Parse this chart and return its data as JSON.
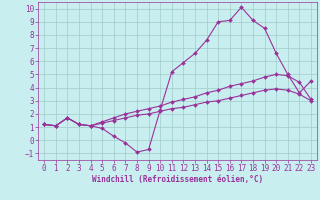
{
  "xlabel": "Windchill (Refroidissement éolien,°C)",
  "xlim": [
    -0.5,
    23.5
  ],
  "ylim": [
    -1.5,
    10.5
  ],
  "xticks": [
    0,
    1,
    2,
    3,
    4,
    5,
    6,
    7,
    8,
    9,
    10,
    11,
    12,
    13,
    14,
    15,
    16,
    17,
    18,
    19,
    20,
    21,
    22,
    23
  ],
  "yticks": [
    -1,
    0,
    1,
    2,
    3,
    4,
    5,
    6,
    7,
    8,
    9,
    10
  ],
  "bg_color": "#c8eef0",
  "grid_color": "#a0ccc8",
  "line_color": "#993399",
  "line1_x": [
    0,
    1,
    2,
    3,
    4,
    5,
    6,
    7,
    8,
    9,
    10,
    11,
    12,
    13,
    14,
    15,
    16,
    17,
    18,
    19,
    20,
    21,
    22,
    23
  ],
  "line1_y": [
    1.2,
    1.1,
    1.7,
    1.2,
    1.1,
    0.9,
    0.3,
    -0.2,
    -0.9,
    -0.7,
    2.3,
    5.2,
    5.9,
    6.6,
    7.6,
    9.0,
    9.1,
    10.1,
    9.1,
    8.5,
    6.6,
    5.0,
    3.6,
    4.5
  ],
  "line2_x": [
    0,
    1,
    2,
    3,
    4,
    5,
    6,
    7,
    8,
    9,
    10,
    11,
    12,
    13,
    14,
    15,
    16,
    17,
    18,
    19,
    20,
    21,
    22,
    23
  ],
  "line2_y": [
    1.2,
    1.1,
    1.7,
    1.2,
    1.1,
    1.4,
    1.7,
    2.0,
    2.2,
    2.4,
    2.6,
    2.9,
    3.1,
    3.3,
    3.6,
    3.8,
    4.1,
    4.3,
    4.5,
    4.8,
    5.0,
    4.9,
    4.4,
    3.1
  ],
  "line3_x": [
    0,
    1,
    2,
    3,
    4,
    5,
    6,
    7,
    8,
    9,
    10,
    11,
    12,
    13,
    14,
    15,
    16,
    17,
    18,
    19,
    20,
    21,
    22,
    23
  ],
  "line3_y": [
    1.2,
    1.1,
    1.7,
    1.2,
    1.1,
    1.3,
    1.5,
    1.7,
    1.9,
    2.0,
    2.2,
    2.4,
    2.5,
    2.7,
    2.9,
    3.0,
    3.2,
    3.4,
    3.6,
    3.8,
    3.9,
    3.8,
    3.5,
    3.0
  ],
  "tick_fontsize": 5.5,
  "xlabel_fontsize": 5.5,
  "marker_size": 2.0,
  "line_width": 0.8
}
